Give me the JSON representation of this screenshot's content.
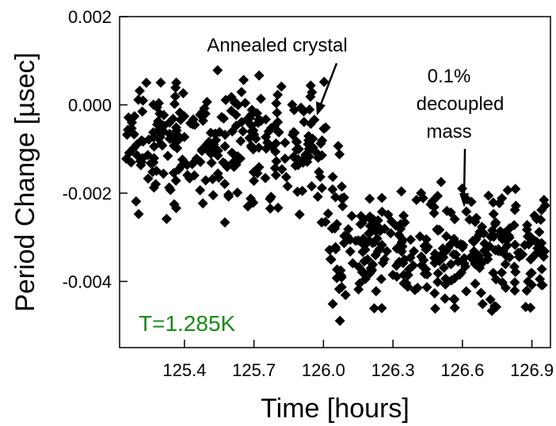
{
  "chart_data": {
    "type": "scatter",
    "xlabel": "Time [hours]",
    "ylabel": "Period Change [µsec]",
    "xlim": [
      125.12,
      126.98
    ],
    "ylim": [
      -0.0055,
      0.002
    ],
    "xticks": [
      125.4,
      125.7,
      126.0,
      126.3,
      126.6,
      126.9
    ],
    "xtick_labels": [
      "125.4",
      "125.7",
      "126.0",
      "126.3",
      "126.6",
      "126.9"
    ],
    "yticks": [
      0.002,
      0.0,
      -0.002,
      -0.004
    ],
    "ytick_labels": [
      "0.002",
      "0.000",
      "-0.002",
      "-0.004"
    ],
    "marker": "diamond",
    "marker_color": "#000000",
    "grid": false,
    "annotations": {
      "annealed": {
        "text": "Annealed crystal",
        "points_to": [
          126.02,
          -0.0003
        ]
      },
      "decoupled": {
        "lines": [
          "0.1%",
          "decoupled",
          "mass"
        ],
        "points_to": [
          126.63,
          -0.0023
        ]
      },
      "temperature": {
        "text": "T=1.285K",
        "color": "#1a8a1a"
      }
    },
    "segments": [
      {
        "x_start": 125.12,
        "x_end": 125.97,
        "y_mean": -0.0009,
        "y_spread": 0.0007,
        "count": 280
      },
      {
        "x_start": 125.97,
        "x_end": 126.1,
        "y_mean": -0.0021,
        "y_spread": 0.0009,
        "count": 45
      },
      {
        "x_start": 126.1,
        "x_end": 126.98,
        "y_mean": -0.0033,
        "y_spread": 0.0006,
        "count": 290
      }
    ]
  }
}
